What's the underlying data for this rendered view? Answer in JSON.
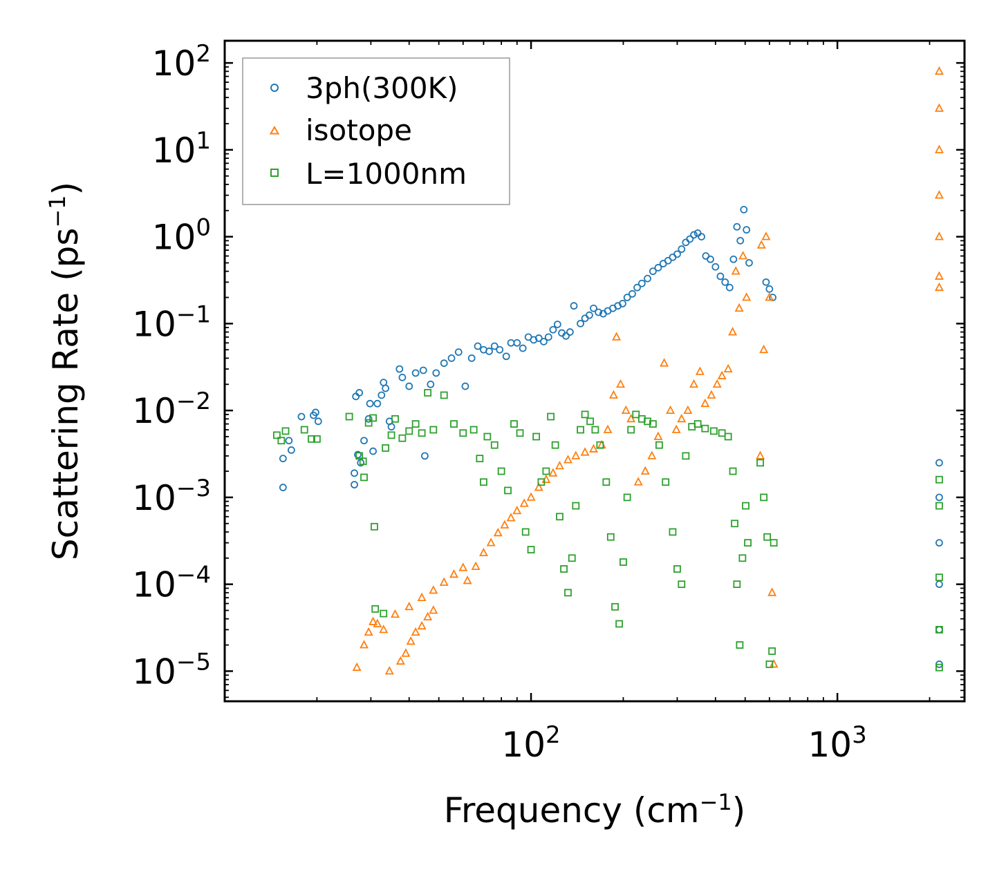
{
  "chart_data": {
    "type": "scatter",
    "xscale": "log",
    "yscale": "log",
    "xlim": [
      10,
      2600
    ],
    "ylim": [
      4.5e-06,
      180
    ],
    "xlabel": {
      "text": "Frequency (cm",
      "sup": "−1",
      "tail": ")"
    },
    "ylabel": {
      "text": "Scattering Rate (ps",
      "sup": "−1",
      "tail": ")"
    },
    "xticks": [
      {
        "value": 100,
        "base": "10",
        "exp": "2"
      },
      {
        "value": 1000,
        "base": "10",
        "exp": "3"
      }
    ],
    "yticks": [
      {
        "value": 1e-05,
        "base": "10",
        "exp": "−5"
      },
      {
        "value": 0.0001,
        "base": "10",
        "exp": "−4"
      },
      {
        "value": 0.001,
        "base": "10",
        "exp": "−3"
      },
      {
        "value": 0.01,
        "base": "10",
        "exp": "−2"
      },
      {
        "value": 0.1,
        "base": "10",
        "exp": "−1"
      },
      {
        "value": 1,
        "base": "10",
        "exp": "0"
      },
      {
        "value": 10,
        "base": "10",
        "exp": "1"
      },
      {
        "value": 100,
        "base": "10",
        "exp": "2"
      }
    ],
    "legend_position": "top-left",
    "series": [
      {
        "name": "3ph(300K)",
        "marker": "circle",
        "color": "#1f77b4",
        "points": [
          [
            15.5,
            0.0028
          ],
          [
            15.5,
            0.0013
          ],
          [
            16.2,
            0.0045
          ],
          [
            16.5,
            0.0035
          ],
          [
            17.8,
            0.0085
          ],
          [
            19.5,
            0.0088
          ],
          [
            19.8,
            0.0095
          ],
          [
            20.2,
            0.0075
          ],
          [
            26.5,
            0.0019
          ],
          [
            26.5,
            0.0014
          ],
          [
            27.2,
            0.0031
          ],
          [
            28.5,
            0.0045
          ],
          [
            27.8,
            0.0025
          ],
          [
            29.5,
            0.008
          ],
          [
            26.8,
            0.0145
          ],
          [
            27.5,
            0.016
          ],
          [
            29.8,
            0.012
          ],
          [
            30.5,
            0.0034
          ],
          [
            31.5,
            0.012
          ],
          [
            32.5,
            0.015
          ],
          [
            33,
            0.021
          ],
          [
            33.5,
            0.018
          ],
          [
            34.5,
            0.0075
          ],
          [
            35,
            0.0065
          ],
          [
            37.2,
            0.03
          ],
          [
            38,
            0.024
          ],
          [
            40,
            0.019
          ],
          [
            42,
            0.027
          ],
          [
            44.5,
            0.029
          ],
          [
            45,
            0.003
          ],
          [
            47,
            0.02
          ],
          [
            49,
            0.027
          ],
          [
            52,
            0.035
          ],
          [
            55,
            0.04
          ],
          [
            58,
            0.047
          ],
          [
            61,
            0.019
          ],
          [
            64,
            0.04
          ],
          [
            67,
            0.055
          ],
          [
            70,
            0.05
          ],
          [
            73,
            0.048
          ],
          [
            76,
            0.055
          ],
          [
            79,
            0.05
          ],
          [
            83,
            0.042
          ],
          [
            86,
            0.06
          ],
          [
            90,
            0.06
          ],
          [
            94,
            0.052
          ],
          [
            98,
            0.07
          ],
          [
            102,
            0.065
          ],
          [
            106,
            0.068
          ],
          [
            110,
            0.062
          ],
          [
            114,
            0.07
          ],
          [
            118,
            0.085
          ],
          [
            122,
            0.098
          ],
          [
            126,
            0.078
          ],
          [
            130,
            0.072
          ],
          [
            134,
            0.08
          ],
          [
            138,
            0.16
          ],
          [
            145,
            0.1
          ],
          [
            150,
            0.115
          ],
          [
            155,
            0.125
          ],
          [
            160,
            0.15
          ],
          [
            166,
            0.135
          ],
          [
            172,
            0.13
          ],
          [
            178,
            0.14
          ],
          [
            185,
            0.15
          ],
          [
            192,
            0.16
          ],
          [
            199,
            0.17
          ],
          [
            206,
            0.2
          ],
          [
            214,
            0.22
          ],
          [
            222,
            0.26
          ],
          [
            230,
            0.29
          ],
          [
            240,
            0.33
          ],
          [
            250,
            0.4
          ],
          [
            260,
            0.44
          ],
          [
            270,
            0.49
          ],
          [
            280,
            0.53
          ],
          [
            290,
            0.58
          ],
          [
            300,
            0.63
          ],
          [
            310,
            0.72
          ],
          [
            320,
            0.86
          ],
          [
            330,
            0.94
          ],
          [
            340,
            1.05
          ],
          [
            350,
            1.1
          ],
          [
            360,
            1.0
          ],
          [
            372,
            0.6
          ],
          [
            385,
            0.55
          ],
          [
            400,
            0.45
          ],
          [
            415,
            0.35
          ],
          [
            430,
            0.3
          ],
          [
            445,
            0.26
          ],
          [
            458,
            0.55
          ],
          [
            470,
            1.3
          ],
          [
            482,
            0.9
          ],
          [
            495,
            2.05
          ],
          [
            505,
            1.2
          ],
          [
            515,
            0.5
          ],
          [
            585,
            0.3
          ],
          [
            600,
            0.25
          ],
          [
            615,
            0.2
          ],
          [
            2150,
            0.0025
          ],
          [
            2150,
            0.001
          ],
          [
            2150,
            0.0003
          ],
          [
            2150,
            0.0001
          ],
          [
            2150,
            3e-05
          ],
          [
            2150,
            1.2e-05
          ]
        ]
      },
      {
        "name": "isotope",
        "marker": "triangle",
        "color": "#ff7f0e",
        "points": [
          [
            27,
            1.1e-05
          ],
          [
            28.5,
            2e-05
          ],
          [
            29.5,
            2.8e-05
          ],
          [
            30.5,
            3.7e-05
          ],
          [
            31.5,
            3.5e-05
          ],
          [
            33,
            3e-05
          ],
          [
            34.5,
            1e-05
          ],
          [
            37.5,
            1.3e-05
          ],
          [
            39,
            1.6e-05
          ],
          [
            40.5,
            2.2e-05
          ],
          [
            42,
            2.8e-05
          ],
          [
            44,
            3.3e-05
          ],
          [
            46,
            4.2e-05
          ],
          [
            48,
            5e-05
          ],
          [
            36,
            4.5e-05
          ],
          [
            40,
            5.5e-05
          ],
          [
            44,
            7e-05
          ],
          [
            48,
            8.5e-05
          ],
          [
            52,
            0.000105
          ],
          [
            56,
            0.00013
          ],
          [
            60,
            0.000155
          ],
          [
            62,
            0.00011
          ],
          [
            66,
            0.00016
          ],
          [
            70,
            0.00023
          ],
          [
            74,
            0.0003
          ],
          [
            78,
            0.00039
          ],
          [
            82,
            0.00048
          ],
          [
            86,
            0.00058
          ],
          [
            90,
            0.0007
          ],
          [
            95,
            0.00085
          ],
          [
            100,
            0.001
          ],
          [
            106,
            0.0013
          ],
          [
            112,
            0.0016
          ],
          [
            118,
            0.0019
          ],
          [
            124,
            0.0023
          ],
          [
            132,
            0.0027
          ],
          [
            140,
            0.003
          ],
          [
            150,
            0.0033
          ],
          [
            160,
            0.0036
          ],
          [
            170,
            0.004
          ],
          [
            178,
            0.006
          ],
          [
            186,
            0.015
          ],
          [
            190,
            0.07
          ],
          [
            196,
            0.02
          ],
          [
            204,
            0.01
          ],
          [
            212,
            0.008
          ],
          [
            224,
            0.0015
          ],
          [
            236,
            0.002
          ],
          [
            248,
            0.003
          ],
          [
            260,
            0.005
          ],
          [
            272,
            0.035
          ],
          [
            285,
            0.01
          ],
          [
            298,
            0.006
          ],
          [
            310,
            0.008
          ],
          [
            325,
            0.01
          ],
          [
            340,
            0.02
          ],
          [
            356,
            0.028
          ],
          [
            370,
            0.012
          ],
          [
            388,
            0.015
          ],
          [
            405,
            0.02
          ],
          [
            420,
            0.025
          ],
          [
            440,
            0.03
          ],
          [
            455,
            0.08
          ],
          [
            466,
            0.4
          ],
          [
            478,
            0.15
          ],
          [
            492,
            0.6
          ],
          [
            505,
            0.2
          ],
          [
            565,
            0.8
          ],
          [
            585,
            1.0
          ],
          [
            600,
            0.2
          ],
          [
            612,
            8e-05
          ],
          [
            620,
            1.2e-05
          ],
          [
            560,
            0.003
          ],
          [
            575,
            0.05
          ],
          [
            2150,
            80.0
          ],
          [
            2150,
            30.0
          ],
          [
            2150,
            10.0
          ],
          [
            2150,
            3.0
          ],
          [
            2150,
            1.0
          ],
          [
            2150,
            0.35
          ],
          [
            2150,
            0.26
          ]
        ]
      },
      {
        "name": "L=1000nm",
        "marker": "square",
        "color": "#2ca02c",
        "points": [
          [
            14.8,
            0.0052
          ],
          [
            15.3,
            0.0045
          ],
          [
            15.8,
            0.0058
          ],
          [
            18.2,
            0.006
          ],
          [
            19.2,
            0.0047
          ],
          [
            20,
            0.0047
          ],
          [
            25.5,
            0.0085
          ],
          [
            27.5,
            0.003
          ],
          [
            28.3,
            0.0026
          ],
          [
            29.5,
            0.0072
          ],
          [
            30.5,
            0.0082
          ],
          [
            28.5,
            0.0017
          ],
          [
            30.8,
            0.00046
          ],
          [
            31,
            5.2e-05
          ],
          [
            33,
            4.6e-05
          ],
          [
            33.5,
            0.0037
          ],
          [
            35,
            0.0052
          ],
          [
            36,
            0.008
          ],
          [
            38,
            0.0048
          ],
          [
            40,
            0.0058
          ],
          [
            42,
            0.007
          ],
          [
            44,
            0.0055
          ],
          [
            46,
            0.016
          ],
          [
            48,
            0.006
          ],
          [
            52,
            0.015
          ],
          [
            56,
            0.007
          ],
          [
            60,
            0.0055
          ],
          [
            65,
            0.006
          ],
          [
            68,
            0.0028
          ],
          [
            70,
            0.0015
          ],
          [
            72,
            0.005
          ],
          [
            76,
            0.004
          ],
          [
            80,
            0.002
          ],
          [
            84,
            0.0012
          ],
          [
            88,
            0.007
          ],
          [
            92,
            0.0055
          ],
          [
            96,
            0.0004
          ],
          [
            100,
            0.00025
          ],
          [
            104,
            0.005
          ],
          [
            108,
            0.0015
          ],
          [
            112,
            0.002
          ],
          [
            116,
            0.0085
          ],
          [
            120,
            0.004
          ],
          [
            124,
            0.0006
          ],
          [
            128,
            0.00015
          ],
          [
            132,
            8e-05
          ],
          [
            136,
            0.0002
          ],
          [
            140,
            0.0008
          ],
          [
            145,
            0.006
          ],
          [
            150,
            0.009
          ],
          [
            156,
            0.0075
          ],
          [
            162,
            0.006
          ],
          [
            168,
            0.004
          ],
          [
            176,
            0.0015
          ],
          [
            182,
            0.00035
          ],
          [
            188,
            5.5e-05
          ],
          [
            194,
            3.5e-05
          ],
          [
            200,
            0.00018
          ],
          [
            206,
            0.001
          ],
          [
            212,
            0.006
          ],
          [
            220,
            0.009
          ],
          [
            230,
            0.008
          ],
          [
            240,
            0.0075
          ],
          [
            250,
            0.007
          ],
          [
            262,
            0.004
          ],
          [
            275,
            0.0015
          ],
          [
            290,
            0.0004
          ],
          [
            300,
            0.00015
          ],
          [
            310,
            0.0001
          ],
          [
            320,
            0.003
          ],
          [
            335,
            0.0065
          ],
          [
            350,
            0.007
          ],
          [
            370,
            0.0062
          ],
          [
            395,
            0.0058
          ],
          [
            420,
            0.0055
          ],
          [
            440,
            0.005
          ],
          [
            456,
            0.002
          ],
          [
            462,
            0.0005
          ],
          [
            470,
            0.0001
          ],
          [
            480,
            2e-05
          ],
          [
            490,
            0.0002
          ],
          [
            502,
            0.0008
          ],
          [
            510,
            0.0003
          ],
          [
            560,
            0.0025
          ],
          [
            575,
            0.001
          ],
          [
            590,
            0.00035
          ],
          [
            600,
            1.2e-05
          ],
          [
            612,
            1.7e-05
          ],
          [
            620,
            0.0003
          ],
          [
            2150,
            0.0016
          ],
          [
            2150,
            0.0008
          ],
          [
            2150,
            0.00012
          ],
          [
            2150,
            3e-05
          ],
          [
            2150,
            1.1e-05
          ]
        ]
      }
    ]
  }
}
